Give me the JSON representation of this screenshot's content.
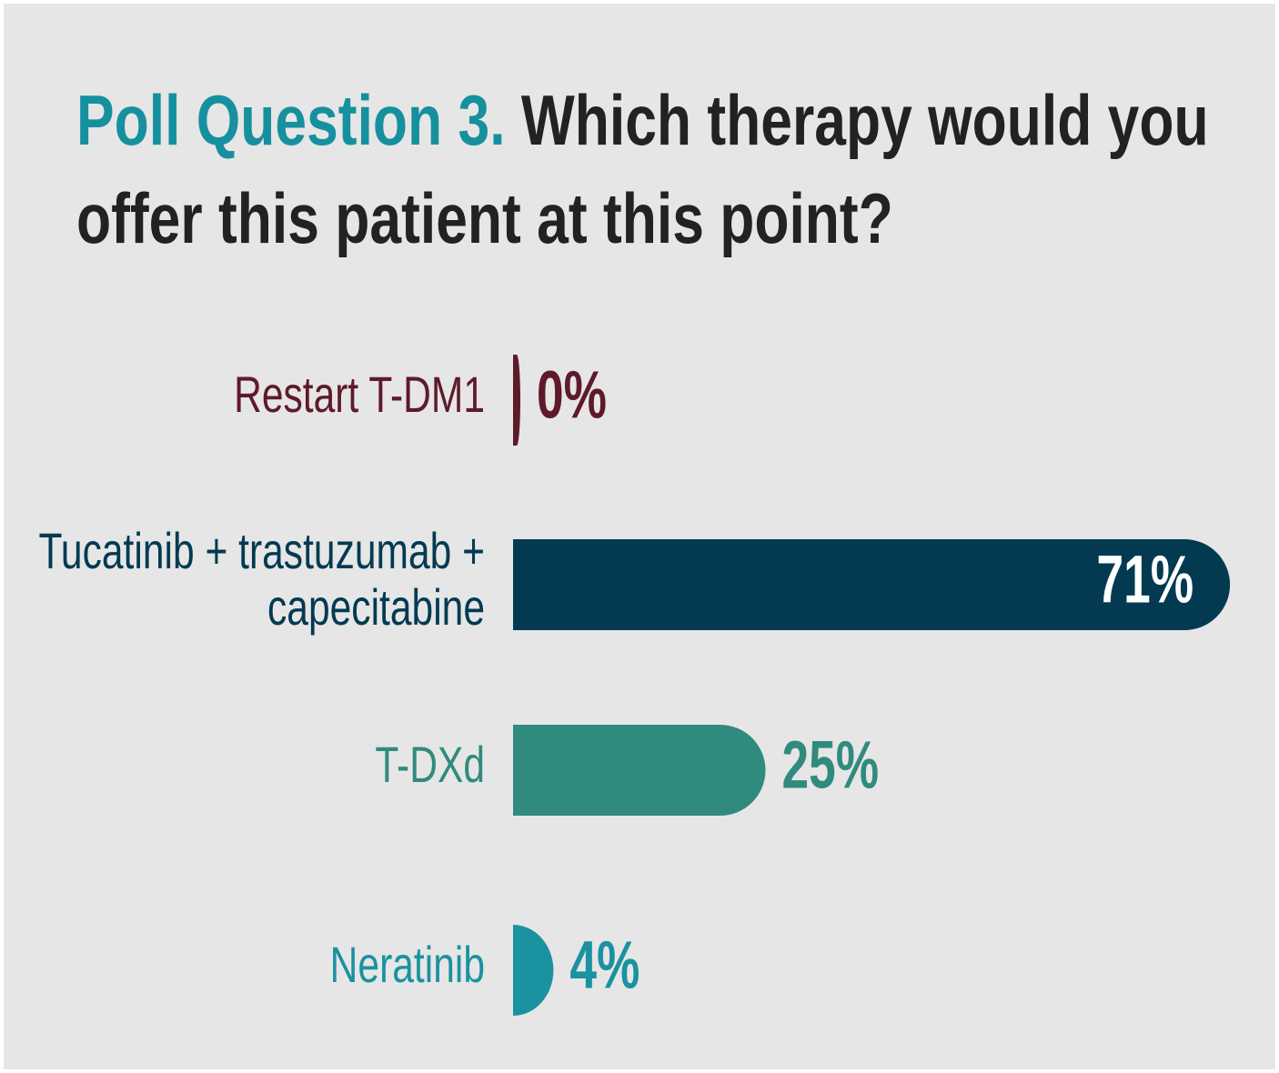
{
  "chart_data": {
    "type": "bar",
    "orientation": "horizontal",
    "title": "Poll Question 3.",
    "subtitle": "Which therapy would you offer this patient at this point?",
    "categories": [
      "Restart T-DM1",
      "Tucatinib + trastuzumab + capecitabine",
      "T-DXd",
      "Neratinib"
    ],
    "values": [
      0,
      71,
      25,
      4
    ],
    "value_labels": [
      "0%",
      "71%",
      "25%",
      "4%"
    ],
    "colors": [
      "#5e1a2b",
      "#033a52",
      "#318a7e",
      "#1a92a0"
    ]
  }
}
